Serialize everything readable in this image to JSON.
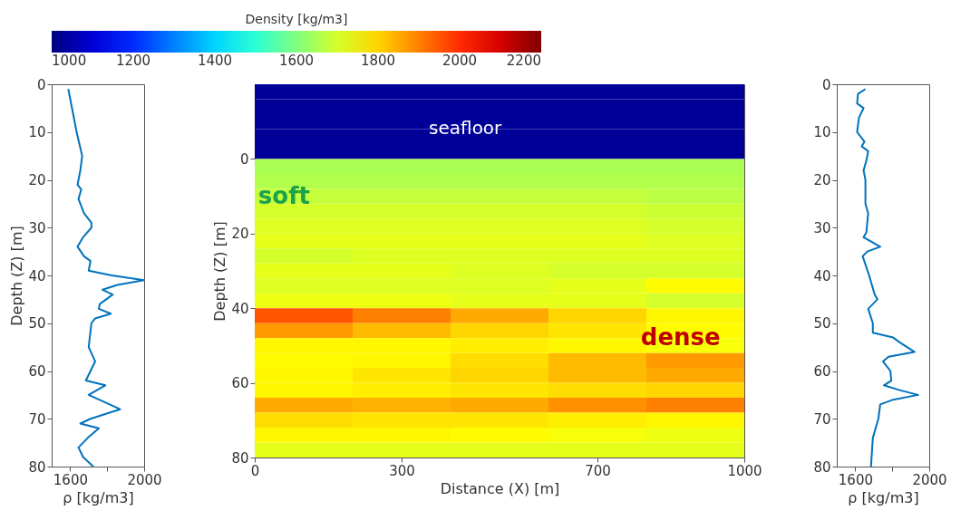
{
  "chart_data": [
    {
      "type": "line",
      "xlabel": "ρ [kg/m3]",
      "ylabel": "Depth (Z) [m]",
      "xlim": [
        1500,
        2000
      ],
      "xticks": [
        1600,
        {
          "value": 1800,
          "label": null
        },
        2000
      ],
      "ylim": [
        80,
        0
      ],
      "yticks": [
        0,
        10,
        20,
        30,
        40,
        50,
        60,
        70,
        80
      ],
      "grid": false,
      "series": [
        {
          "color": "#0072bd",
          "x": [
            1590,
            1635,
            1665,
            1655,
            1640,
            1660,
            1645,
            1675,
            1715,
            1715,
            1670,
            1640,
            1675,
            1710,
            1700,
            1825,
            2000,
            1855,
            1775,
            1830,
            1760,
            1755,
            1820,
            1735,
            1715,
            1700,
            1735,
            1685,
            1790,
            1700,
            1870,
            1710,
            1655,
            1755,
            1695,
            1645,
            1670,
            1725
          ],
          "values": [
            1,
            10,
            15,
            18,
            21,
            22,
            24,
            27,
            29,
            30,
            32,
            34,
            36,
            37,
            39,
            40,
            41,
            42,
            43,
            44,
            46,
            47,
            48,
            49,
            50,
            55,
            58,
            62,
            63,
            65,
            68,
            70,
            71,
            72,
            74,
            76,
            78,
            80
          ]
        }
      ]
    },
    {
      "type": "heatmap",
      "xlabel": "Distance (X) [m]",
      "ylabel": "Depth (Z) [m]",
      "clabel": "Density [kg/m3]",
      "xlim": [
        0,
        1000
      ],
      "xticks": [
        0,
        300,
        700,
        1000
      ],
      "ylim": [
        80,
        -20
      ],
      "yticks": [
        0,
        20,
        40,
        60,
        80
      ],
      "clim": [
        1000,
        2200
      ],
      "cticks": [
        1000,
        1200,
        1400,
        1600,
        1800,
        2000,
        2200
      ],
      "colors": [
        "#000080",
        "#0000ff",
        "#0080ff",
        "#00ffff",
        "#80ff80",
        "#ffff00",
        "#ff8000",
        "#ff0000",
        "#800000"
      ],
      "x": [
        100,
        300,
        500,
        700,
        900
      ],
      "y": [
        -18,
        -14,
        -10,
        -6,
        -2,
        2,
        6,
        10,
        14,
        18,
        22,
        26,
        30,
        34,
        38,
        42,
        46,
        50,
        54,
        58,
        62,
        66,
        70,
        74,
        78
      ],
      "cells": [
        [
          1030,
          1030,
          1030,
          1030,
          1030
        ],
        [
          1030,
          1030,
          1030,
          1030,
          1030
        ],
        [
          1030,
          1030,
          1030,
          1030,
          1030
        ],
        [
          1030,
          1030,
          1030,
          1030,
          1030
        ],
        [
          1030,
          1030,
          1030,
          1030,
          1030
        ],
        [
          1650,
          1650,
          1650,
          1650,
          1650
        ],
        [
          1660,
          1660,
          1660,
          1660,
          1660
        ],
        [
          1680,
          1680,
          1680,
          1680,
          1670
        ],
        [
          1700,
          1700,
          1700,
          1700,
          1690
        ],
        [
          1710,
          1710,
          1710,
          1710,
          1700
        ],
        [
          1720,
          1720,
          1720,
          1720,
          1710
        ],
        [
          1700,
          1710,
          1710,
          1710,
          1710
        ],
        [
          1720,
          1720,
          1710,
          1700,
          1700
        ],
        [
          1710,
          1710,
          1710,
          1720,
          1755
        ],
        [
          1730,
          1730,
          1720,
          1720,
          1700
        ],
        [
          1950,
          1900,
          1850,
          1800,
          1760
        ],
        [
          1870,
          1830,
          1800,
          1780,
          1755
        ],
        [
          1760,
          1760,
          1770,
          1760,
          1740
        ],
        [
          1755,
          1760,
          1790,
          1830,
          1870
        ],
        [
          1760,
          1780,
          1800,
          1830,
          1850
        ],
        [
          1760,
          1770,
          1780,
          1790,
          1800
        ],
        [
          1850,
          1840,
          1850,
          1880,
          1900
        ],
        [
          1790,
          1780,
          1780,
          1770,
          1760
        ],
        [
          1760,
          1760,
          1755,
          1740,
          1730
        ],
        [
          1720,
          1720,
          1720,
          1720,
          1720
        ]
      ],
      "annotations": [
        "seafloor",
        "soft",
        "dense"
      ]
    },
    {
      "type": "line",
      "xlabel": "ρ [kg/m3]",
      "xlim": [
        1500,
        2000
      ],
      "xticks": [
        1600,
        {
          "value": 1800,
          "label": null
        },
        2000
      ],
      "ylim": [
        80,
        0
      ],
      "yticks": [
        0,
        10,
        20,
        30,
        40,
        50,
        60,
        70,
        80
      ],
      "grid": false,
      "series": [
        {
          "color": "#0072bd",
          "x": [
            1655,
            1615,
            1610,
            1645,
            1620,
            1610,
            1650,
            1635,
            1670,
            1660,
            1645,
            1655,
            1655,
            1670,
            1660,
            1645,
            1735,
            1665,
            1640,
            1675,
            1705,
            1720,
            1670,
            1695,
            1695,
            1805,
            1840,
            1920,
            1780,
            1750,
            1790,
            1795,
            1755,
            1840,
            1940,
            1805,
            1735,
            1725,
            1695,
            1685
          ],
          "values": [
            1,
            2,
            4,
            5,
            7,
            10,
            12,
            13,
            14,
            16,
            18,
            20,
            25,
            27,
            31,
            32,
            34,
            35,
            36,
            40,
            44,
            45,
            47,
            50,
            52,
            53,
            54,
            56,
            57,
            58,
            60,
            62,
            63,
            64,
            65,
            66,
            67,
            70,
            74,
            80
          ]
        }
      ]
    }
  ]
}
